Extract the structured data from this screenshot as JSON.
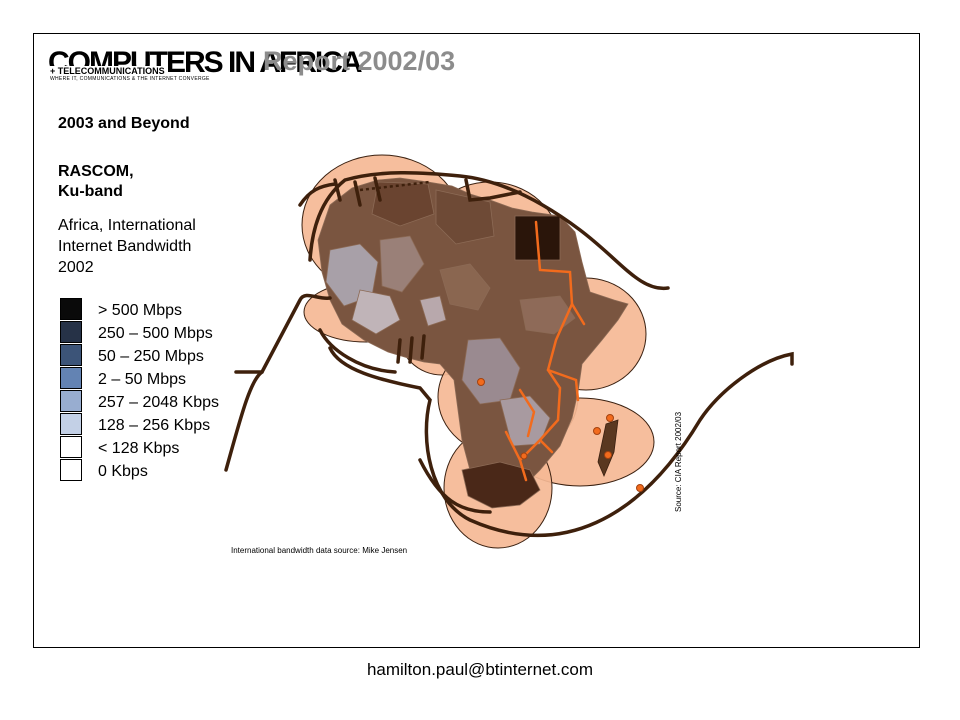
{
  "header": {
    "logo_main": "COMPUTERS IN AFRICA",
    "logo_sub": "+ TELECOMMUNICATIONS",
    "logo_tagline": "WHERE IT, COMMUNICATIONS & THE INTERNET CONVERGE",
    "report_title": "Report 2002/03"
  },
  "sidebar": {
    "section_title": "2003 and Beyond",
    "subtitle_line1": "RASCOM,",
    "subtitle_line2": "Ku-band",
    "map_title_line1": "Africa, International",
    "map_title_line2": "Internet Bandwidth",
    "map_title_line3": "2002"
  },
  "legend": [
    {
      "label": "> 500 Mbps",
      "color": "#0a0a0a"
    },
    {
      "label": "250 – 500 Mbps",
      "color": "#263247"
    },
    {
      "label": "50 – 250 Mbps",
      "color": "#3c5478"
    },
    {
      "label": "2 – 50 Mbps",
      "color": "#6383b3"
    },
    {
      "label": "257 – 2048 Kbps",
      "color": "#98add0"
    },
    {
      "label": "128 – 256 Kbps",
      "color": "#c3d0e6"
    },
    {
      "label": "< 128 Kbps",
      "color": "#ffffff"
    },
    {
      "label": "0 Kbps",
      "color": "#ffffff"
    }
  ],
  "map": {
    "source_credit": "Source: CIA Report 2002/03",
    "data_source": "International bandwidth data source: Mike Jensen",
    "colors": {
      "footprint": "#f5b995",
      "cable": "#4a2510",
      "terrestrial": "#f26b1d",
      "land_dark": "#5a3820"
    }
  },
  "footer": {
    "email": "hamilton.paul@btinternet.com"
  }
}
